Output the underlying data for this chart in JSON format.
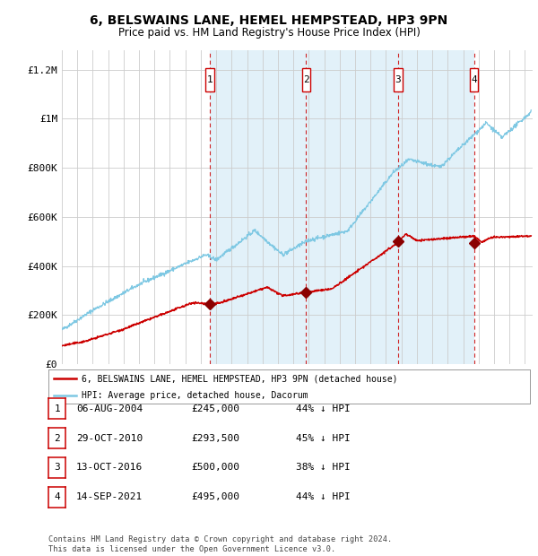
{
  "title": "6, BELSWAINS LANE, HEMEL HEMPSTEAD, HP3 9PN",
  "subtitle": "Price paid vs. HM Land Registry's House Price Index (HPI)",
  "x_start_year": 1995,
  "x_end_year": 2025,
  "y_min": 0,
  "y_max": 1280000,
  "y_ticks": [
    0,
    200000,
    400000,
    600000,
    800000,
    1000000,
    1200000
  ],
  "y_tick_labels": [
    "£0",
    "£200K",
    "£400K",
    "£600K",
    "£800K",
    "£1M",
    "£1.2M"
  ],
  "chart_bg_color": "#f0f4f8",
  "grid_color": "#cccccc",
  "hpi_line_color": "#7ec8e3",
  "price_line_color": "#cc0000",
  "sale_marker_color": "#8b0000",
  "dashed_line_color": "#cc0000",
  "span_fill_color": "#d0e8f5",
  "sale_points": [
    {
      "year": 2004,
      "month": 8,
      "day": 6,
      "price": 245000
    },
    {
      "year": 2010,
      "month": 10,
      "day": 29,
      "price": 293500
    },
    {
      "year": 2016,
      "month": 10,
      "day": 13,
      "price": 500000
    },
    {
      "year": 2021,
      "month": 9,
      "day": 14,
      "price": 495000
    }
  ],
  "legend_line1": "6, BELSWAINS LANE, HEMEL HEMPSTEAD, HP3 9PN (detached house)",
  "legend_line2": "HPI: Average price, detached house, Dacorum",
  "footer_line1": "Contains HM Land Registry data © Crown copyright and database right 2024.",
  "footer_line2": "This data is licensed under the Open Government Licence v3.0.",
  "table_rows": [
    {
      "num": "1",
      "date": "06-AUG-2004",
      "price": "£245,000",
      "pct": "44% ↓ HPI"
    },
    {
      "num": "2",
      "date": "29-OCT-2010",
      "price": "£293,500",
      "pct": "45% ↓ HPI"
    },
    {
      "num": "3",
      "date": "13-OCT-2016",
      "price": "£500,000",
      "pct": "38% ↓ HPI"
    },
    {
      "num": "4",
      "date": "14-SEP-2021",
      "price": "£495,000",
      "pct": "44% ↓ HPI"
    }
  ]
}
